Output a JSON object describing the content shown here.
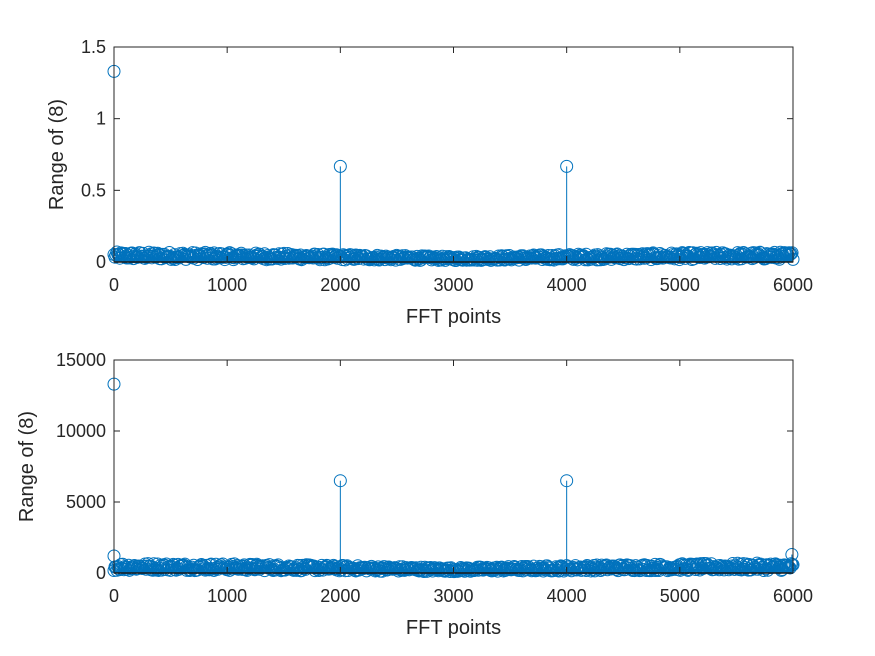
{
  "chart_data": [
    {
      "type": "stem",
      "xlabel": "FFT points",
      "ylabel": "Range of (8)",
      "xlim": [
        0,
        6000
      ],
      "ylim": [
        0,
        1.5
      ],
      "xticks": [
        "0",
        "1000",
        "2000",
        "3000",
        "4000",
        "5000",
        "6000"
      ],
      "yticks": [
        "0",
        "0.5",
        "1",
        "1.5"
      ],
      "grid": false,
      "color": "#0072BD",
      "peaks": [
        {
          "x": 0,
          "y": 1.33
        },
        {
          "x": 2000,
          "y": 0.667
        },
        {
          "x": 4000,
          "y": 0.667
        }
      ],
      "noise_floor_max": 0.07
    },
    {
      "type": "stem",
      "xlabel": "FFT points",
      "ylabel": "Range of (8)",
      "xlim": [
        0,
        6000
      ],
      "ylim": [
        0,
        15000
      ],
      "xticks": [
        "0",
        "1000",
        "2000",
        "3000",
        "4000",
        "5000",
        "6000"
      ],
      "yticks": [
        "0",
        "5000",
        "10000",
        "15000"
      ],
      "grid": false,
      "color": "#0072BD",
      "peaks": [
        {
          "x": 0,
          "y": 13300
        },
        {
          "x": 0,
          "y": 1200
        },
        {
          "x": 2000,
          "y": 6500
        },
        {
          "x": 4000,
          "y": 6500
        },
        {
          "x": 5990,
          "y": 1300
        }
      ],
      "noise_floor_max": 700
    }
  ]
}
